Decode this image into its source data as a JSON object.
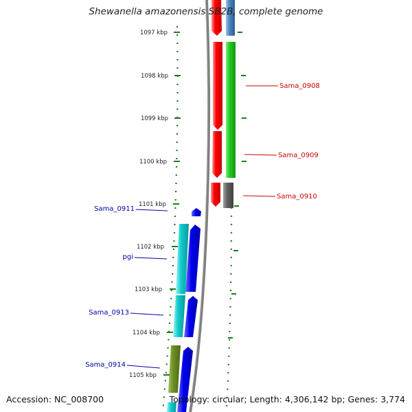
{
  "title": "Shewanella amazonensis SB2B, complete genome",
  "footer": {
    "accession": "Accession: NC_008700",
    "topology": "Topology: circular; Length: 4,306,142 bp; Genes: 3,774"
  },
  "ticks": [
    {
      "label": "1097 kbp"
    },
    {
      "label": "1098 kbp"
    },
    {
      "label": "1099 kbp"
    },
    {
      "label": "1100 kbp"
    },
    {
      "label": "1101 kbp"
    },
    {
      "label": "1102 kbp"
    },
    {
      "label": "1103 kbp"
    },
    {
      "label": "1104 kbp"
    },
    {
      "label": "1105 kbp"
    }
  ],
  "gene_labels": [
    {
      "name": "Sama_0908",
      "strand": "forward"
    },
    {
      "name": "Sama_0909",
      "strand": "forward"
    },
    {
      "name": "Sama_0910",
      "strand": "forward"
    },
    {
      "name": "Sama_0911",
      "strand": "reverse"
    },
    {
      "name": "pgi",
      "strand": "reverse"
    },
    {
      "name": "Sama_0913",
      "strand": "reverse"
    },
    {
      "name": "Sama_0914",
      "strand": "reverse"
    }
  ],
  "colors": {
    "forward_label": "#cc0000",
    "reverse_label": "#0000aa",
    "tick": "#1a7a1a",
    "backbone": "#808080",
    "red": "#ff0000",
    "green": "#22cc22",
    "gray": "#606060",
    "steelblue": "#4a86c0",
    "blue": "#0000ee",
    "cyan": "#10cccc",
    "olive": "#6b8e23"
  }
}
